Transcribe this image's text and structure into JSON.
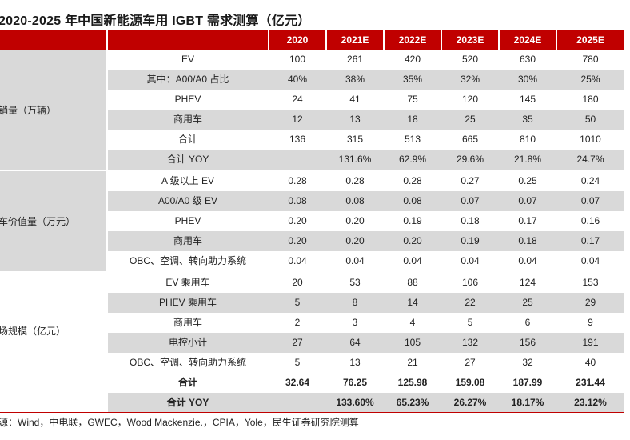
{
  "title": "2020-2025 年中国新能源车用 IGBT 需求测算（亿元）",
  "columns": [
    "2020",
    "2021E",
    "2022E",
    "2023E",
    "2024E",
    "2025E"
  ],
  "groups": [
    {
      "label": "销量（万辆）"
    },
    {
      "label": "车价值量（万元）"
    },
    {
      "label": "场规模（亿元）"
    }
  ],
  "rows": [
    {
      "label": "EV",
      "values": [
        "100",
        "261",
        "420",
        "520",
        "630",
        "780"
      ]
    },
    {
      "label": "其中：A00/A0 占比",
      "values": [
        "40%",
        "38%",
        "35%",
        "32%",
        "30%",
        "25%"
      ]
    },
    {
      "label": "PHEV",
      "values": [
        "24",
        "41",
        "75",
        "120",
        "145",
        "180"
      ]
    },
    {
      "label": "商用车",
      "values": [
        "12",
        "13",
        "18",
        "25",
        "35",
        "50"
      ]
    },
    {
      "label": "合计",
      "values": [
        "136",
        "315",
        "513",
        "665",
        "810",
        "1010"
      ]
    },
    {
      "label": "合计 YOY",
      "values": [
        "",
        "131.6%",
        "62.9%",
        "29.6%",
        "21.8%",
        "24.7%"
      ]
    },
    {
      "label": "A 级以上 EV",
      "values": [
        "0.28",
        "0.28",
        "0.28",
        "0.27",
        "0.25",
        "0.24"
      ]
    },
    {
      "label": "A00/A0 级  EV",
      "values": [
        "0.08",
        "0.08",
        "0.08",
        "0.07",
        "0.07",
        "0.07"
      ]
    },
    {
      "label": "PHEV",
      "values": [
        "0.20",
        "0.20",
        "0.19",
        "0.18",
        "0.17",
        "0.16"
      ]
    },
    {
      "label": "商用车",
      "values": [
        "0.20",
        "0.20",
        "0.20",
        "0.19",
        "0.18",
        "0.17"
      ]
    },
    {
      "label": "OBC、空调、转向助力系统",
      "values": [
        "0.04",
        "0.04",
        "0.04",
        "0.04",
        "0.04",
        "0.04"
      ]
    },
    {
      "label": "EV  乘用车",
      "values": [
        "20",
        "53",
        "88",
        "106",
        "124",
        "153"
      ]
    },
    {
      "label": "PHEV  乘用车",
      "values": [
        "5",
        "8",
        "14",
        "22",
        "25",
        "29"
      ]
    },
    {
      "label": "商用车",
      "values": [
        "2",
        "3",
        "4",
        "5",
        "6",
        "9"
      ]
    },
    {
      "label": "电控小计",
      "values": [
        "27",
        "64",
        "105",
        "132",
        "156",
        "191"
      ]
    },
    {
      "label": "OBC、空调、转向助力系统",
      "values": [
        "5",
        "13",
        "21",
        "27",
        "32",
        "40"
      ]
    },
    {
      "label": "合计",
      "values": [
        "32.64",
        "76.25",
        "125.98",
        "159.08",
        "187.99",
        "231.44"
      ]
    },
    {
      "label": "合计 YOY",
      "values": [
        "",
        "133.60%",
        "65.23%",
        "26.27%",
        "18.17%",
        "23.12%"
      ]
    }
  ],
  "footer": "源：Wind，中电联，GWEC，Wood Mackenzie.，CPIA，Yole，民生证券研究院测算"
}
